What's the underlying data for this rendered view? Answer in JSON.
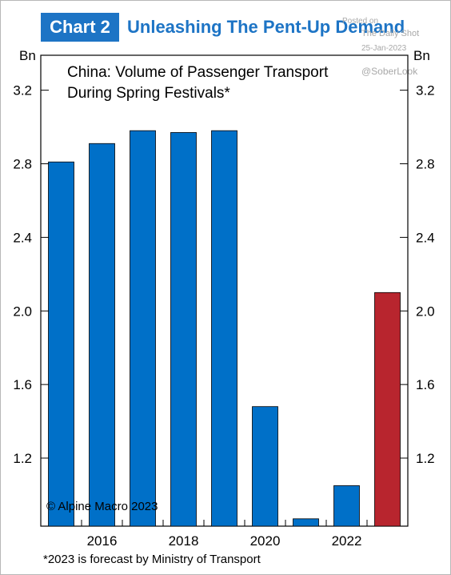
{
  "header": {
    "badge": "Chart 2",
    "title": "Unleashing The Pent-Up Demand"
  },
  "watermark": {
    "posted": "Posted on",
    "source": "The Daily Shot",
    "date": "25-Jan-2023",
    "handle": "@SoberLook"
  },
  "copyright": "© Alpine Macro 2023",
  "footnote": "*2023 is forecast by Ministry of Transport",
  "colors": {
    "accent": "#1d74c5",
    "bar_actual": "#0070c8",
    "bar_forecast": "#b8252e"
  },
  "chart_data": {
    "type": "bar",
    "title": [
      "China: Volume of Passenger Transport",
      "During Spring Festivals*"
    ],
    "unit_left": "Bn",
    "unit_right": "Bn",
    "years": [
      2015,
      2016,
      2017,
      2018,
      2019,
      2020,
      2021,
      2022,
      2023
    ],
    "values": [
      2.81,
      2.91,
      2.98,
      2.97,
      2.98,
      1.48,
      0.87,
      1.05,
      2.1
    ],
    "forecast": [
      false,
      false,
      false,
      false,
      false,
      false,
      false,
      false,
      true
    ],
    "x_tick_labels": [
      "2016",
      "2018",
      "2020",
      "2022"
    ],
    "y_ticks": [
      1.2,
      1.6,
      2.0,
      2.4,
      2.8,
      3.2
    ],
    "y_tick_labels": [
      "1.2",
      "1.6",
      "2.0",
      "2.4",
      "2.8",
      "3.2"
    ],
    "ylim": [
      0.83,
      3.39
    ],
    "grid": false,
    "legend": "none"
  }
}
